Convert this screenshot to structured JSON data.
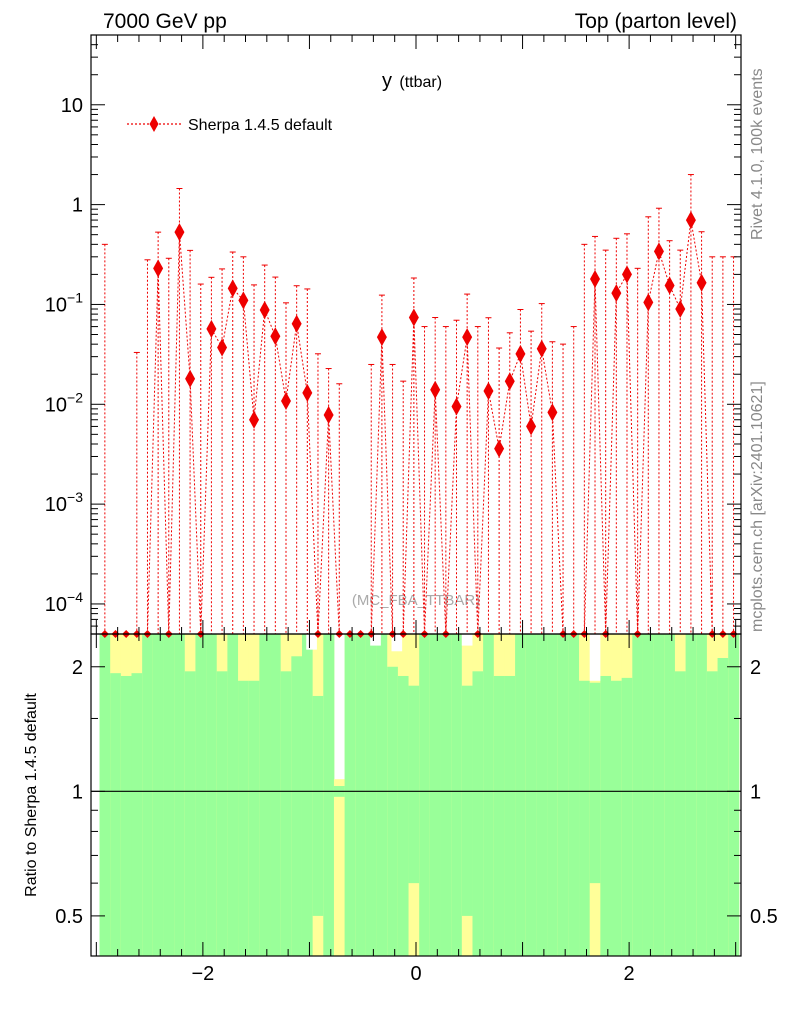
{
  "header": {
    "left": "7000 GeV pp",
    "right": "Top (parton level)"
  },
  "side_labels": {
    "rivet": "Rivet 4.1.0,  100k events",
    "source": "mcplots.cern.ch [arXiv:2401.10621]"
  },
  "watermark": "(MC_FBA_TTBAR)",
  "colors": {
    "series": "#ee0000",
    "band_inner": "#99ff99",
    "band_outer": "#ffff99"
  },
  "chart_data": [
    {
      "type": "scatter",
      "title_main": "y",
      "title_sub": "(ttbar)",
      "yscale": "log",
      "xlim": [
        -3.05,
        3.05
      ],
      "ylim": [
        5e-05,
        50
      ],
      "yticks": [
        {
          "v": 0.0001,
          "base": "10",
          "exp": "−4"
        },
        {
          "v": 0.001,
          "base": "10",
          "exp": "−3"
        },
        {
          "v": 0.01,
          "base": "10",
          "exp": "−2"
        },
        {
          "v": 0.1,
          "base": "10",
          "exp": "−1"
        },
        {
          "v": 1,
          "base": "1",
          "exp": ""
        },
        {
          "v": 10,
          "base": "10",
          "exp": ""
        }
      ],
      "legend": {
        "position": "top-left",
        "label": "Sherpa 1.4.5 default"
      },
      "series": [
        {
          "name": "Sherpa 1.4.5 default",
          "x": [
            -2.97,
            -2.87,
            -2.77,
            -2.67,
            -2.57,
            -2.47,
            -2.37,
            -2.27,
            -2.17,
            -2.07,
            -1.97,
            -1.87,
            -1.77,
            -1.67,
            -1.57,
            -1.47,
            -1.37,
            -1.27,
            -1.17,
            -1.07,
            -0.97,
            -0.87,
            -0.77,
            -0.67,
            -0.57,
            -0.47,
            -0.37,
            -0.27,
            -0.17,
            -0.07,
            0.03,
            0.13,
            0.23,
            0.33,
            0.43,
            0.53,
            0.63,
            0.73,
            0.83,
            0.93,
            1.03,
            1.13,
            1.23,
            1.33,
            1.43,
            1.53,
            1.63,
            1.73,
            1.83,
            1.93,
            2.03,
            2.13,
            2.23,
            2.33,
            2.43,
            2.53,
            2.63,
            2.73,
            2.83,
            2.93
          ],
          "y": [
            5e-05,
            5e-05,
            5e-05,
            5e-05,
            5e-05,
            0.23,
            5e-05,
            0.53,
            0.018,
            5e-05,
            0.057,
            0.037,
            0.145,
            0.11,
            0.007,
            0.088,
            0.048,
            0.0108,
            0.064,
            0.013,
            5e-05,
            0.0078,
            5e-05,
            5e-05,
            5e-05,
            5e-05,
            0.047,
            5e-05,
            5e-05,
            0.074,
            5e-05,
            0.014,
            5e-05,
            0.0095,
            0.047,
            5e-05,
            0.0136,
            0.0036,
            0.017,
            0.032,
            0.006,
            0.036,
            0.0083,
            5e-05,
            5e-05,
            5e-05,
            0.18,
            5e-05,
            0.13,
            0.2,
            5e-05,
            0.105,
            0.34,
            0.155,
            0.09,
            0.7,
            0.165,
            5e-05,
            5e-05,
            5e-05
          ],
          "err_up": [
            0.4,
            0,
            0,
            0.033,
            0.28,
            0.3,
            0.29,
            0.92,
            0.33,
            0.16,
            0.13,
            0.19,
            0.19,
            0.19,
            0.15,
            0.16,
            0.14,
            0.093,
            0.09,
            0.13,
            0.032,
            0.015,
            0.016,
            0,
            0,
            0.025,
            0.077,
            0.025,
            0.017,
            0.11,
            0.06,
            0.06,
            0.06,
            0.06,
            0.08,
            0.06,
            0.06,
            0.033,
            0.035,
            0.057,
            0.048,
            0.066,
            0.034,
            0.04,
            0.06,
            0.4,
            0.3,
            0.35,
            0.33,
            0.31,
            0.23,
            0.65,
            0.58,
            0.28,
            0.26,
            1.3,
            0.37,
            0.3,
            0.3,
            0.3
          ]
        }
      ]
    },
    {
      "type": "area",
      "ylabel": "Ratio to Sherpa 1.4.5 default",
      "yscale": "log",
      "ylim": [
        0.4,
        2.4
      ],
      "yticks": [
        {
          "v": 0.5,
          "label": "0.5"
        },
        {
          "v": 1,
          "label": "1"
        },
        {
          "v": 2,
          "label": "2"
        }
      ],
      "xticks": [
        {
          "v": -2,
          "label": "−2"
        },
        {
          "v": 0,
          "label": "0"
        },
        {
          "v": 2,
          "label": "2"
        }
      ],
      "bins_x0": [
        -2.97,
        -2.87,
        -2.77,
        -2.67,
        -2.57,
        -2.47,
        -2.37,
        -2.27,
        -2.17,
        -2.07,
        -1.97,
        -1.87,
        -1.77,
        -1.67,
        -1.57,
        -1.47,
        -1.37,
        -1.27,
        -1.17,
        -1.07,
        -0.97,
        -0.87,
        -0.77,
        -0.67,
        -0.57,
        -0.47,
        -0.37,
        -0.27,
        -0.17,
        -0.07,
        0.03,
        0.13,
        0.23,
        0.33,
        0.43,
        0.53,
        0.63,
        0.73,
        0.83,
        0.93,
        1.03,
        1.13,
        1.23,
        1.33,
        1.43,
        1.53,
        1.63,
        1.73,
        1.83,
        1.93,
        2.03,
        2.13,
        2.23,
        2.33,
        2.43,
        2.53,
        2.63,
        2.73,
        2.83,
        2.93
      ],
      "bin_width": 0.1,
      "band_inner_top": [
        2.4,
        1.93,
        1.9,
        1.93,
        2.4,
        2.4,
        2.4,
        2.4,
        1.95,
        2.4,
        2.4,
        1.95,
        2.4,
        1.85,
        1.85,
        2.4,
        2.4,
        1.95,
        2.12,
        2.4,
        1.7,
        2.4,
        1.03,
        2.4,
        2.4,
        2.4,
        2.4,
        2.0,
        1.9,
        1.8,
        2.4,
        2.4,
        2.4,
        2.4,
        1.8,
        1.95,
        2.4,
        1.9,
        1.9,
        2.4,
        2.4,
        2.4,
        2.4,
        2.4,
        2.4,
        1.85,
        1.83,
        1.9,
        1.85,
        1.88,
        2.4,
        2.4,
        2.4,
        2.4,
        1.95,
        2.4,
        2.4,
        1.95,
        2.1,
        2.4
      ],
      "band_outer_top": [
        2.4,
        2.4,
        2.4,
        2.4,
        2.4,
        2.4,
        2.4,
        2.4,
        2.4,
        2.4,
        2.4,
        2.4,
        2.4,
        2.4,
        2.4,
        2.4,
        2.4,
        2.4,
        2.4,
        2.4,
        2.4,
        2.4,
        1.07,
        2.4,
        2.4,
        2.4,
        2.4,
        2.4,
        2.4,
        2.4,
        2.4,
        2.4,
        2.4,
        2.4,
        2.4,
        2.4,
        2.4,
        2.4,
        2.4,
        2.4,
        2.4,
        2.4,
        2.4,
        2.4,
        2.4,
        2.4,
        2.4,
        2.4,
        2.4,
        2.4,
        2.4,
        2.4,
        2.4,
        2.4,
        2.4,
        2.4,
        2.4,
        2.4,
        2.4,
        2.4
      ],
      "band_outer_bottom": [
        0.4,
        0.4,
        0.4,
        0.4,
        0.4,
        0.4,
        0.4,
        0.4,
        0.4,
        0.4,
        0.4,
        0.4,
        0.4,
        0.4,
        0.4,
        0.4,
        0.4,
        0.4,
        0.4,
        0.4,
        0.4,
        0.4,
        0.4,
        0.4,
        0.4,
        0.4,
        0.4,
        0.4,
        0.4,
        0.4,
        0.4,
        0.4,
        0.4,
        0.4,
        0.4,
        0.4,
        0.4,
        0.4,
        0.4,
        0.4,
        0.4,
        0.4,
        0.4,
        0.4,
        0.4,
        0.4,
        0.4,
        0.4,
        0.4,
        0.4,
        0.4,
        0.4,
        0.4,
        0.4,
        0.4,
        0.4,
        0.4,
        0.4,
        0.4,
        0.4
      ],
      "band_inner_bottom": [
        0.4,
        0.4,
        0.4,
        0.4,
        0.4,
        0.4,
        0.4,
        0.4,
        0.4,
        0.4,
        0.4,
        0.4,
        0.4,
        0.4,
        0.4,
        0.4,
        0.4,
        0.4,
        0.4,
        0.4,
        0.5,
        0.4,
        0.97,
        0.4,
        0.4,
        0.4,
        0.4,
        0.4,
        0.4,
        0.6,
        0.4,
        0.4,
        0.4,
        0.4,
        0.5,
        0.4,
        0.4,
        0.4,
        0.4,
        0.4,
        0.4,
        0.4,
        0.4,
        0.4,
        0.4,
        0.4,
        0.6,
        0.4,
        0.4,
        0.4,
        0.4,
        0.4,
        0.4,
        0.4,
        0.4,
        0.4,
        0.4,
        0.4,
        0.4,
        0.4
      ],
      "white_above": [
        {
          "x": -1.03,
          "from": 2.2
        },
        {
          "x": -0.43,
          "from": 2.25
        },
        {
          "x": -0.23,
          "from": 2.18
        },
        {
          "x": 0.43,
          "from": 2.25
        },
        {
          "x": 1.63,
          "from": 1.85
        }
      ]
    }
  ]
}
